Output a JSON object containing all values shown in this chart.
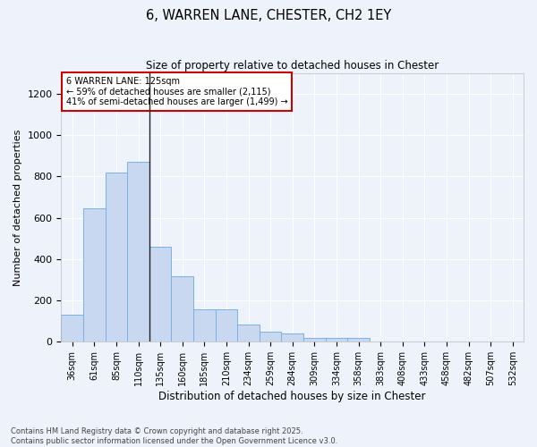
{
  "title": "6, WARREN LANE, CHESTER, CH2 1EY",
  "subtitle": "Size of property relative to detached houses in Chester",
  "xlabel": "Distribution of detached houses by size in Chester",
  "ylabel": "Number of detached properties",
  "bar_color": "#c8d8f0",
  "bar_edge_color": "#7ab0e0",
  "categories": [
    "36sqm",
    "61sqm",
    "85sqm",
    "110sqm",
    "135sqm",
    "160sqm",
    "185sqm",
    "210sqm",
    "234sqm",
    "259sqm",
    "284sqm",
    "309sqm",
    "334sqm",
    "358sqm",
    "383sqm",
    "408sqm",
    "433sqm",
    "458sqm",
    "482sqm",
    "507sqm",
    "532sqm"
  ],
  "values": [
    130,
    645,
    820,
    870,
    460,
    315,
    155,
    155,
    85,
    50,
    40,
    18,
    18,
    18,
    0,
    0,
    0,
    0,
    0,
    0,
    3
  ],
  "ylim": [
    0,
    1300
  ],
  "yticks": [
    0,
    200,
    400,
    600,
    800,
    1000,
    1200
  ],
  "property_label": "6 WARREN LANE: 125sqm",
  "pct_smaller": 59,
  "n_smaller": 2115,
  "pct_larger_semi": 41,
  "n_larger_semi": 1499,
  "vline_x": 3.5,
  "vline_color": "#222222",
  "box_edge_color": "#cc0000",
  "background_color": "#eef2fa",
  "grid_color": "#ffffff",
  "footnote_line1": "Contains HM Land Registry data © Crown copyright and database right 2025.",
  "footnote_line2": "Contains public sector information licensed under the Open Government Licence v3.0."
}
